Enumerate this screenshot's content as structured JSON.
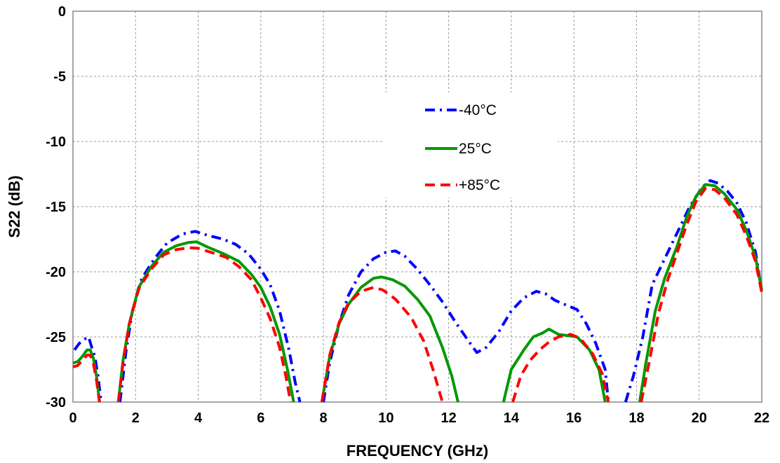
{
  "chart_data": {
    "type": "line",
    "title": "",
    "xlabel": "FREQUENCY (GHz)",
    "ylabel": "S22 (dB)",
    "xlim": [
      0,
      22
    ],
    "ylim": [
      -30,
      0
    ],
    "xticks": [
      0,
      2,
      4,
      6,
      8,
      10,
      12,
      14,
      16,
      18,
      20,
      22
    ],
    "yticks": [
      0,
      -5,
      -10,
      -15,
      -20,
      -25,
      -30
    ],
    "xtick_labels": [
      "0",
      "2",
      "4",
      "6",
      "8",
      "10",
      "12",
      "14",
      "16",
      "18",
      "20",
      "22"
    ],
    "ytick_labels": [
      "0",
      "-5",
      "-10",
      "-15",
      "-20",
      "-25",
      "-30"
    ],
    "grid": true,
    "legend_position": "center",
    "series": [
      {
        "name": "-40°C",
        "color": "#0000FF",
        "style": "dash-dot",
        "segments": [
          [
            [
              0.05,
              -26.0
            ],
            [
              0.2,
              -25.5
            ],
            [
              0.35,
              -25.2
            ],
            [
              0.5,
              -25.0
            ],
            [
              0.6,
              -25.8
            ],
            [
              0.7,
              -26.5
            ],
            [
              0.8,
              -28.0
            ],
            [
              0.9,
              -30.0
            ]
          ],
          [
            [
              1.5,
              -30.0
            ],
            [
              1.7,
              -26.0
            ],
            [
              1.9,
              -23.0
            ],
            [
              2.2,
              -20.5
            ],
            [
              2.6,
              -19.0
            ],
            [
              3.0,
              -17.8
            ],
            [
              3.5,
              -17.1
            ],
            [
              3.9,
              -16.9
            ],
            [
              4.3,
              -17.2
            ],
            [
              4.8,
              -17.5
            ],
            [
              5.2,
              -17.9
            ],
            [
              5.6,
              -18.6
            ],
            [
              6.0,
              -19.8
            ],
            [
              6.3,
              -21.0
            ],
            [
              6.6,
              -23.0
            ],
            [
              6.9,
              -26.0
            ],
            [
              7.1,
              -28.5
            ],
            [
              7.25,
              -30.0
            ]
          ],
          [
            [
              8.0,
              -30.0
            ],
            [
              8.2,
              -27.0
            ],
            [
              8.5,
              -24.0
            ],
            [
              8.8,
              -21.8
            ],
            [
              9.2,
              -20.0
            ],
            [
              9.6,
              -19.0
            ],
            [
              10.0,
              -18.5
            ],
            [
              10.3,
              -18.4
            ],
            [
              10.6,
              -18.8
            ],
            [
              11.0,
              -19.8
            ],
            [
              11.4,
              -21.0
            ],
            [
              11.8,
              -22.3
            ],
            [
              12.2,
              -23.8
            ],
            [
              12.6,
              -25.2
            ],
            [
              12.9,
              -26.2
            ],
            [
              13.2,
              -25.8
            ],
            [
              13.6,
              -24.6
            ],
            [
              14.0,
              -23.0
            ],
            [
              14.4,
              -22.0
            ],
            [
              14.8,
              -21.5
            ],
            [
              15.1,
              -21.7
            ],
            [
              15.4,
              -22.2
            ],
            [
              15.8,
              -22.6
            ],
            [
              16.1,
              -22.9
            ],
            [
              16.4,
              -24.0
            ],
            [
              16.7,
              -25.5
            ],
            [
              17.0,
              -27.5
            ],
            [
              17.1,
              -30.0
            ]
          ],
          [
            [
              17.65,
              -30.0
            ],
            [
              17.9,
              -28.0
            ],
            [
              18.2,
              -25.0
            ],
            [
              18.5,
              -21.0
            ],
            [
              18.9,
              -19.0
            ],
            [
              19.3,
              -17.0
            ],
            [
              19.7,
              -15.0
            ],
            [
              20.1,
              -13.5
            ],
            [
              20.35,
              -13.0
            ],
            [
              20.6,
              -13.2
            ],
            [
              20.9,
              -13.8
            ],
            [
              21.2,
              -14.7
            ],
            [
              21.5,
              -16.2
            ],
            [
              21.8,
              -18.5
            ],
            [
              22.0,
              -21.5
            ]
          ]
        ]
      },
      {
        "name": "25°C",
        "color": "#009900",
        "style": "solid",
        "segments": [
          [
            [
              0.0,
              -27.0
            ],
            [
              0.15,
              -26.9
            ],
            [
              0.3,
              -26.5
            ],
            [
              0.45,
              -26.0
            ],
            [
              0.55,
              -26.0
            ],
            [
              0.65,
              -26.6
            ],
            [
              0.75,
              -28.0
            ],
            [
              0.85,
              -30.0
            ]
          ],
          [
            [
              1.45,
              -30.0
            ],
            [
              1.6,
              -26.8
            ],
            [
              1.8,
              -24.0
            ],
            [
              2.1,
              -21.2
            ],
            [
              2.5,
              -19.6
            ],
            [
              2.9,
              -18.5
            ],
            [
              3.3,
              -18.0
            ],
            [
              3.7,
              -17.75
            ],
            [
              3.95,
              -17.7
            ],
            [
              4.3,
              -18.1
            ],
            [
              4.8,
              -18.6
            ],
            [
              5.3,
              -19.2
            ],
            [
              5.7,
              -20.2
            ],
            [
              6.0,
              -21.2
            ],
            [
              6.3,
              -22.7
            ],
            [
              6.6,
              -24.8
            ],
            [
              6.85,
              -27.5
            ],
            [
              7.05,
              -30.0
            ]
          ],
          [
            [
              7.95,
              -30.0
            ],
            [
              8.2,
              -26.5
            ],
            [
              8.5,
              -24.0
            ],
            [
              8.8,
              -22.5
            ],
            [
              9.2,
              -21.2
            ],
            [
              9.6,
              -20.5
            ],
            [
              9.85,
              -20.4
            ],
            [
              10.2,
              -20.6
            ],
            [
              10.6,
              -21.1
            ],
            [
              11.0,
              -22.1
            ],
            [
              11.4,
              -23.4
            ],
            [
              11.8,
              -25.8
            ],
            [
              12.1,
              -28.0
            ],
            [
              12.3,
              -30.0
            ]
          ],
          [
            [
              13.75,
              -30.0
            ],
            [
              14.0,
              -27.5
            ],
            [
              14.4,
              -26.0
            ],
            [
              14.7,
              -25.0
            ],
            [
              15.0,
              -24.7
            ],
            [
              15.2,
              -24.4
            ],
            [
              15.5,
              -24.8
            ],
            [
              15.8,
              -24.9
            ],
            [
              16.1,
              -25.0
            ],
            [
              16.5,
              -26.0
            ],
            [
              16.8,
              -27.5
            ],
            [
              17.0,
              -30.0
            ]
          ],
          [
            [
              18.1,
              -30.0
            ],
            [
              18.3,
              -27.0
            ],
            [
              18.6,
              -23.0
            ],
            [
              18.9,
              -20.5
            ],
            [
              19.3,
              -18.0
            ],
            [
              19.6,
              -15.8
            ],
            [
              19.9,
              -14.2
            ],
            [
              20.2,
              -13.3
            ],
            [
              20.5,
              -13.4
            ],
            [
              20.8,
              -14.0
            ],
            [
              21.2,
              -15.2
            ],
            [
              21.5,
              -16.8
            ],
            [
              21.8,
              -18.9
            ],
            [
              22.0,
              -21.4
            ]
          ]
        ]
      },
      {
        "name": "+85°C",
        "color": "#FF0000",
        "style": "dashed",
        "segments": [
          [
            [
              0.0,
              -27.3
            ],
            [
              0.15,
              -27.2
            ],
            [
              0.3,
              -26.8
            ],
            [
              0.45,
              -26.4
            ],
            [
              0.55,
              -26.4
            ],
            [
              0.65,
              -27.0
            ],
            [
              0.75,
              -28.3
            ],
            [
              0.85,
              -30.0
            ]
          ],
          [
            [
              1.45,
              -30.0
            ],
            [
              1.6,
              -27.0
            ],
            [
              1.8,
              -24.0
            ],
            [
              2.1,
              -21.3
            ],
            [
              2.5,
              -19.8
            ],
            [
              2.9,
              -18.7
            ],
            [
              3.3,
              -18.3
            ],
            [
              3.7,
              -18.15
            ],
            [
              4.0,
              -18.2
            ],
            [
              4.4,
              -18.5
            ],
            [
              4.9,
              -18.9
            ],
            [
              5.3,
              -19.6
            ],
            [
              5.7,
              -20.6
            ],
            [
              6.0,
              -22.0
            ],
            [
              6.3,
              -23.6
            ],
            [
              6.6,
              -25.8
            ],
            [
              6.8,
              -28.0
            ],
            [
              6.95,
              -30.0
            ]
          ],
          [
            [
              7.95,
              -30.0
            ],
            [
              8.2,
              -26.4
            ],
            [
              8.5,
              -23.9
            ],
            [
              8.8,
              -22.4
            ],
            [
              9.2,
              -21.5
            ],
            [
              9.6,
              -21.2
            ],
            [
              9.9,
              -21.4
            ],
            [
              10.3,
              -22.1
            ],
            [
              10.8,
              -23.5
            ],
            [
              11.2,
              -25.3
            ],
            [
              11.5,
              -27.5
            ],
            [
              11.8,
              -30.0
            ]
          ],
          [
            [
              14.05,
              -30.0
            ],
            [
              14.3,
              -28.0
            ],
            [
              14.6,
              -26.8
            ],
            [
              14.9,
              -26.0
            ],
            [
              15.2,
              -25.4
            ],
            [
              15.5,
              -25.0
            ],
            [
              15.9,
              -24.8
            ],
            [
              16.2,
              -25.1
            ],
            [
              16.6,
              -26.3
            ],
            [
              16.9,
              -27.8
            ],
            [
              17.1,
              -30.0
            ]
          ],
          [
            [
              18.15,
              -30.0
            ],
            [
              18.4,
              -27.0
            ],
            [
              18.7,
              -23.2
            ],
            [
              19.0,
              -20.6
            ],
            [
              19.3,
              -18.5
            ],
            [
              19.6,
              -16.4
            ],
            [
              19.9,
              -14.6
            ],
            [
              20.2,
              -13.6
            ],
            [
              20.5,
              -13.7
            ],
            [
              20.8,
              -14.3
            ],
            [
              21.2,
              -15.6
            ],
            [
              21.5,
              -17.2
            ],
            [
              21.8,
              -19.2
            ],
            [
              22.0,
              -21.6
            ]
          ]
        ]
      }
    ]
  }
}
